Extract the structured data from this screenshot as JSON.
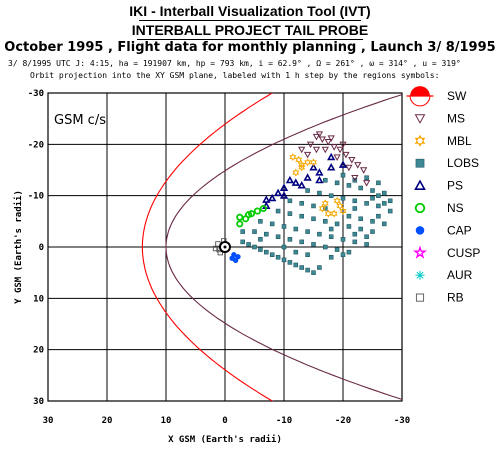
{
  "header": {
    "title": "IKI - Interball Visualization Tool (IVT)",
    "subtitle": "INTERBALL PROJECT TAIL PROBE",
    "flight_line": "October  1995 ,  Flight data for monthly planning ,  Launch  3/ 8/1995",
    "orbit_params": "3/ 8/1995 UTC  J: 4:15, ha = 191907 km, hp =     793 km, i = 62.9° , Ω = 261° , ω = 314° , u = 319°",
    "description": "Orbit projection into the XY GSM plane, labeled with 1 h step by the regions symbols:"
  },
  "chart_data": {
    "type": "scatter",
    "plot_label": "GSM c/s",
    "xlabel": "X GSM (Earth's radii)",
    "ylabel": "Y GSM (Earth's radii)",
    "xlim": [
      30,
      -30
    ],
    "ylim": [
      -30,
      30
    ],
    "xticks": [
      30,
      20,
      10,
      0,
      -10,
      -20,
      -30
    ],
    "yticks": [
      -30,
      -20,
      -10,
      0,
      10,
      20,
      30
    ],
    "grid": true,
    "legend_position": "right",
    "legend": [
      {
        "label": "SW",
        "color": "#ff0000",
        "symbol": "sun-half-icon"
      },
      {
        "label": "MS",
        "color": "#6a2a48",
        "symbol": "triangle-down-icon"
      },
      {
        "label": "MBL",
        "color": "#f5a800",
        "symbol": "star-of-david-icon"
      },
      {
        "label": "LOBS",
        "color": "#3d8a96",
        "symbol": "square-shaded-icon"
      },
      {
        "label": "PS",
        "color": "#000080",
        "symbol": "triangle-up-icon"
      },
      {
        "label": "NS",
        "color": "#00cc00",
        "symbol": "circle-icon"
      },
      {
        "label": "CAP",
        "color": "#0050ff",
        "symbol": "filled-octagon-icon"
      },
      {
        "label": "CUSP",
        "color": "#ff00ff",
        "symbol": "star-icon"
      },
      {
        "label": "AUR",
        "color": "#00c8c8",
        "symbol": "asterisk-icon"
      },
      {
        "label": "RB",
        "color": "#555555",
        "symbol": "open-square-icon"
      }
    ],
    "boundaries": [
      {
        "name": "bow-shock",
        "color": "#ff0000",
        "nose_x": 14,
        "flank_y": 30
      },
      {
        "name": "magnetopause",
        "color": "#6a2a48",
        "nose_x": 10,
        "flank_y": 21
      }
    ],
    "series": [
      {
        "name": "RB",
        "points": [
          [
            0.5,
            0
          ],
          [
            1,
            0.5
          ],
          [
            0.8,
            1.1
          ],
          [
            1.2,
            -0.6
          ],
          [
            0.2,
            -1.2
          ],
          [
            1.6,
            0.3
          ]
        ]
      },
      {
        "name": "CAP",
        "points": [
          [
            -1.5,
            1.5
          ],
          [
            -1.8,
            2.6
          ],
          [
            -2.2,
            1.9
          ],
          [
            -1.2,
            2.2
          ]
        ]
      },
      {
        "name": "NS",
        "points": [
          [
            -2.5,
            -4.5
          ],
          [
            -3.5,
            -5.5
          ],
          [
            -4.5,
            -6.5
          ],
          [
            -5.5,
            -7
          ],
          [
            -6.5,
            -7.5
          ],
          [
            -2.5,
            -5.8
          ],
          [
            -4,
            -6.3
          ]
        ]
      },
      {
        "name": "PS",
        "points": [
          [
            -7,
            -8
          ],
          [
            -8,
            -9.5
          ],
          [
            -10,
            -11.5
          ],
          [
            -12,
            -12.5
          ],
          [
            -14,
            -13.5
          ],
          [
            -16,
            -14.5
          ],
          [
            -18,
            -15.5
          ],
          [
            -10,
            -10
          ],
          [
            -13,
            -12
          ],
          [
            -16,
            -13
          ],
          [
            -11,
            -13
          ],
          [
            -15,
            -15.5
          ],
          [
            -18,
            -17.5
          ],
          [
            -7,
            -9.2
          ],
          [
            -9,
            -10.5
          ],
          [
            -20,
            -16
          ]
        ]
      },
      {
        "name": "MBL",
        "points": [
          [
            -12,
            -14.5
          ],
          [
            -13,
            -16
          ],
          [
            -11.5,
            -17.5
          ],
          [
            -12.5,
            -17
          ],
          [
            -15,
            -16.5
          ],
          [
            -16.5,
            -7.5
          ],
          [
            -17.5,
            -6.5
          ],
          [
            -18.5,
            -6.5
          ],
          [
            -20,
            -7
          ],
          [
            -19,
            -9
          ],
          [
            -13,
            -15.5
          ],
          [
            -17,
            -8.5
          ],
          [
            -19.5,
            -8
          ],
          [
            -14,
            -16.5
          ]
        ]
      },
      {
        "name": "MS",
        "points": [
          [
            -13,
            -19
          ],
          [
            -14.5,
            -20
          ],
          [
            -15.5,
            -21.5
          ],
          [
            -16.5,
            -21
          ],
          [
            -17.5,
            -20.5
          ],
          [
            -18.5,
            -19.5
          ],
          [
            -19.5,
            -19
          ],
          [
            -20.5,
            -18
          ],
          [
            -21.5,
            -17
          ],
          [
            -22.5,
            -16
          ],
          [
            -23.5,
            -15
          ],
          [
            -17,
            -19
          ],
          [
            -19,
            -17.5
          ],
          [
            -21,
            -15.5
          ],
          [
            -15.5,
            -19
          ],
          [
            -22,
            -13.5
          ],
          [
            -24,
            -12.5
          ],
          [
            -14,
            -18
          ],
          [
            -18,
            -21.2
          ],
          [
            -20,
            -20
          ],
          [
            -16,
            -22
          ]
        ]
      },
      {
        "name": "LOBS",
        "points": [
          [
            -3,
            -1
          ],
          [
            -4,
            -0.5
          ],
          [
            -5,
            0
          ],
          [
            -6,
            0.5
          ],
          [
            -7,
            1
          ],
          [
            -8,
            1.5
          ],
          [
            -9,
            2
          ],
          [
            -10,
            2.5
          ],
          [
            -11,
            3
          ],
          [
            -12,
            3.5
          ],
          [
            -13,
            4
          ],
          [
            -14,
            4.5
          ],
          [
            -15,
            5
          ],
          [
            -3,
            -3
          ],
          [
            -5,
            -3
          ],
          [
            -7,
            -2.5
          ],
          [
            -9,
            -2
          ],
          [
            -11,
            -1.5
          ],
          [
            -13,
            -1
          ],
          [
            -15,
            -0.5
          ],
          [
            -17,
            0
          ],
          [
            -19,
            0.5
          ],
          [
            -21,
            1
          ],
          [
            -6,
            -5
          ],
          [
            -8,
            -4.5
          ],
          [
            -10,
            -4
          ],
          [
            -12,
            -3.5
          ],
          [
            -14,
            -3
          ],
          [
            -16,
            -2.5
          ],
          [
            -18,
            -2
          ],
          [
            -20,
            -1.5
          ],
          [
            -22,
            -1
          ],
          [
            -24,
            -0.5
          ],
          [
            -9,
            -7
          ],
          [
            -11,
            -6.5
          ],
          [
            -13,
            -6
          ],
          [
            -15,
            -5.5
          ],
          [
            -17,
            -5
          ],
          [
            -19,
            -4.5
          ],
          [
            -21,
            -4
          ],
          [
            -23,
            -3.5
          ],
          [
            -25,
            -3
          ],
          [
            -11,
            -9
          ],
          [
            -13,
            -8.5
          ],
          [
            -15,
            -8
          ],
          [
            -17,
            -7.5
          ],
          [
            -21,
            -6
          ],
          [
            -23,
            -5.5
          ],
          [
            -25,
            -5
          ],
          [
            -27,
            -4.5
          ],
          [
            -14,
            -11
          ],
          [
            -16,
            -10.5
          ],
          [
            -18,
            -10
          ],
          [
            -20,
            -9.5
          ],
          [
            -22,
            -9
          ],
          [
            -24,
            -8.5
          ],
          [
            -26,
            -8
          ],
          [
            -28,
            -7
          ],
          [
            -17,
            -13
          ],
          [
            -19,
            -12.5
          ],
          [
            -21,
            -12
          ],
          [
            -23,
            -11.5
          ],
          [
            -25,
            -11
          ],
          [
            -27,
            -10.5
          ],
          [
            -20,
            -14
          ],
          [
            -22,
            -13
          ],
          [
            -24,
            -13.5
          ],
          [
            -26,
            -12.5
          ],
          [
            -27,
            -8.5
          ],
          [
            -26,
            -6
          ],
          [
            -24,
            -2
          ],
          [
            -20,
            1.5
          ],
          [
            -16,
            4
          ],
          [
            -18,
            2
          ],
          [
            -12,
            1
          ],
          [
            -22,
            -2.5
          ],
          [
            -25,
            -9.5
          ],
          [
            -28,
            -9
          ],
          [
            -6,
            -1.5
          ],
          [
            -10,
            0
          ],
          [
            -14,
            1.5
          ],
          [
            -18,
            -3.5
          ],
          [
            -22,
            -7.5
          ],
          [
            -26,
            -10
          ]
        ]
      }
    ]
  }
}
